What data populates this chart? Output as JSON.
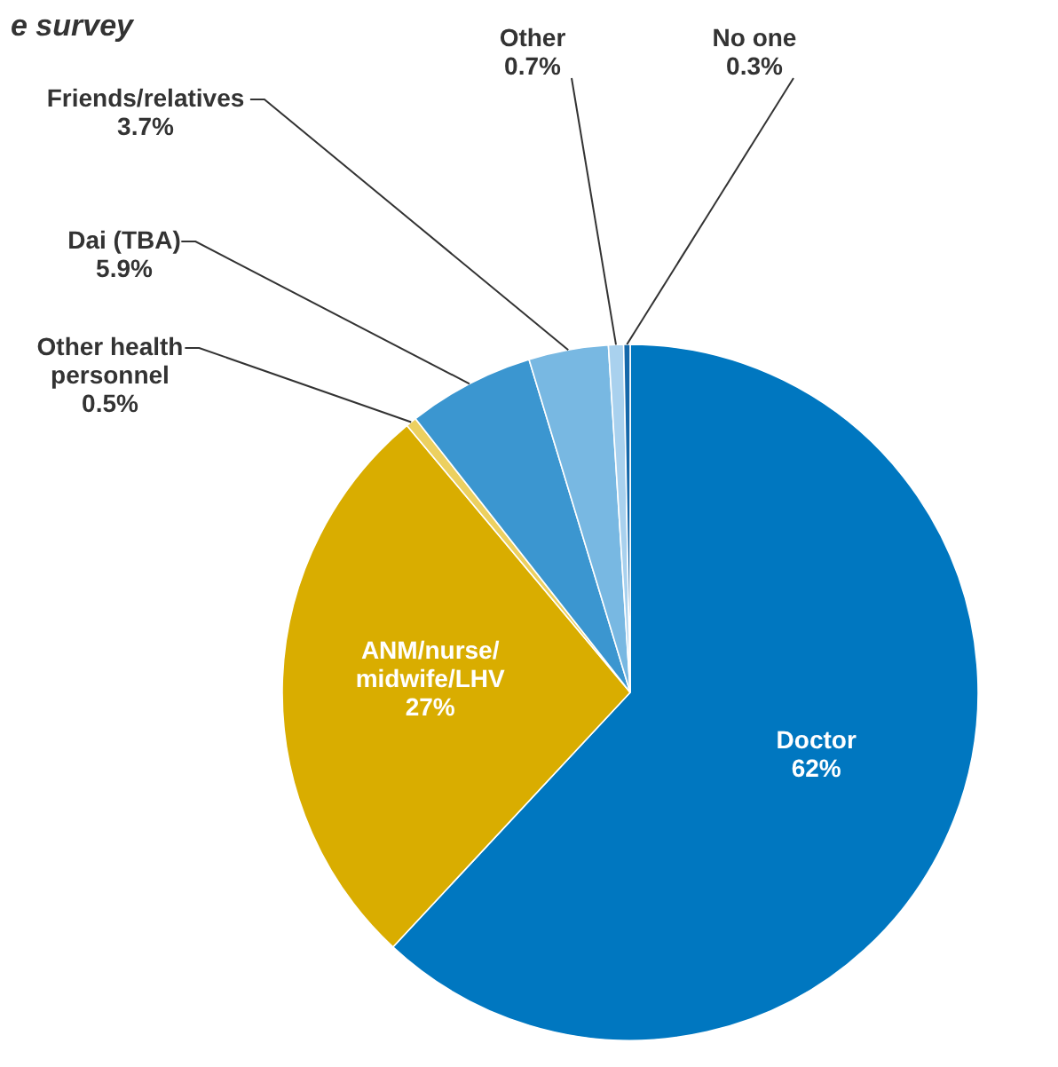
{
  "chart_data": {
    "type": "pie",
    "title": "e survey",
    "categories": [
      "Doctor",
      "ANM/nurse/midwife/LHV",
      "Other health personnel",
      "Dai (TBA)",
      "Friends/relatives",
      "Other",
      "No one"
    ],
    "values": [
      62,
      27,
      0.5,
      5.9,
      3.7,
      0.7,
      0.3
    ],
    "value_labels": [
      "62%",
      "27%",
      "0.5%",
      "5.9%",
      "3.7%",
      "0.7%",
      "0.3%"
    ],
    "colors": [
      "#0077c0",
      "#d9ad00",
      "#ecd060",
      "#3b96d0",
      "#78b8e2",
      "#a9d1ee",
      "#1468aa"
    ]
  }
}
